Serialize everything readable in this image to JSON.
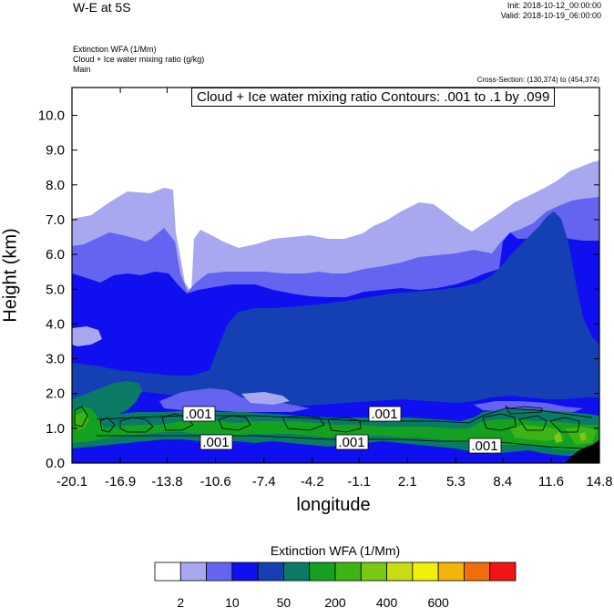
{
  "header": {
    "title": "W-E at 5S",
    "init": "Init: 2018-10-12_00:00:00",
    "valid": "Valid: 2018-10-19_06:00:00",
    "field_lines": [
      "Extinction WFA   (1/Mm)",
      "Cloud + Ice water mixing ratio   (g/kg)",
      "Main"
    ],
    "cross_section": "Cross-Section: (130,374) to (454,374)",
    "contour_info": "Cloud + Ice water mixing ratio Contours: .001 to .1 by .099"
  },
  "chart_data": {
    "type": "heatmap",
    "xlabel": "longitude",
    "ylabel": "Height (km)",
    "x_ticks": [
      "-20.1",
      "-16.9",
      "-13.8",
      "-10.6",
      "-7.4",
      "-4.2",
      "-1.1",
      "2.1",
      "5.3",
      "8.4",
      "11.6",
      "14.8"
    ],
    "y_ticks": [
      "0.0",
      "1.0",
      "2.0",
      "3.0",
      "4.0",
      "5.0",
      "6.0",
      "7.0",
      "8.0",
      "9.0",
      "10.0"
    ],
    "xlim": [
      -20.1,
      14.8
    ],
    "ylim": [
      0,
      10.8
    ],
    "colorbar": {
      "title": "Extinction WFA  (1/Mm)",
      "colors": [
        "#ffffff",
        "#a8a8f0",
        "#6464f0",
        "#0f0ff0",
        "#1440b4",
        "#0a7a64",
        "#14a020",
        "#3cb414",
        "#78c814",
        "#c8dc14",
        "#f0f00a",
        "#f0b40a",
        "#f06e0a",
        "#f01414"
      ],
      "labels": [
        "2",
        "10",
        "50",
        "200",
        "400",
        "600"
      ]
    },
    "contour_labels": [
      ".001",
      ".001",
      ".001",
      ".001",
      ".001"
    ]
  }
}
